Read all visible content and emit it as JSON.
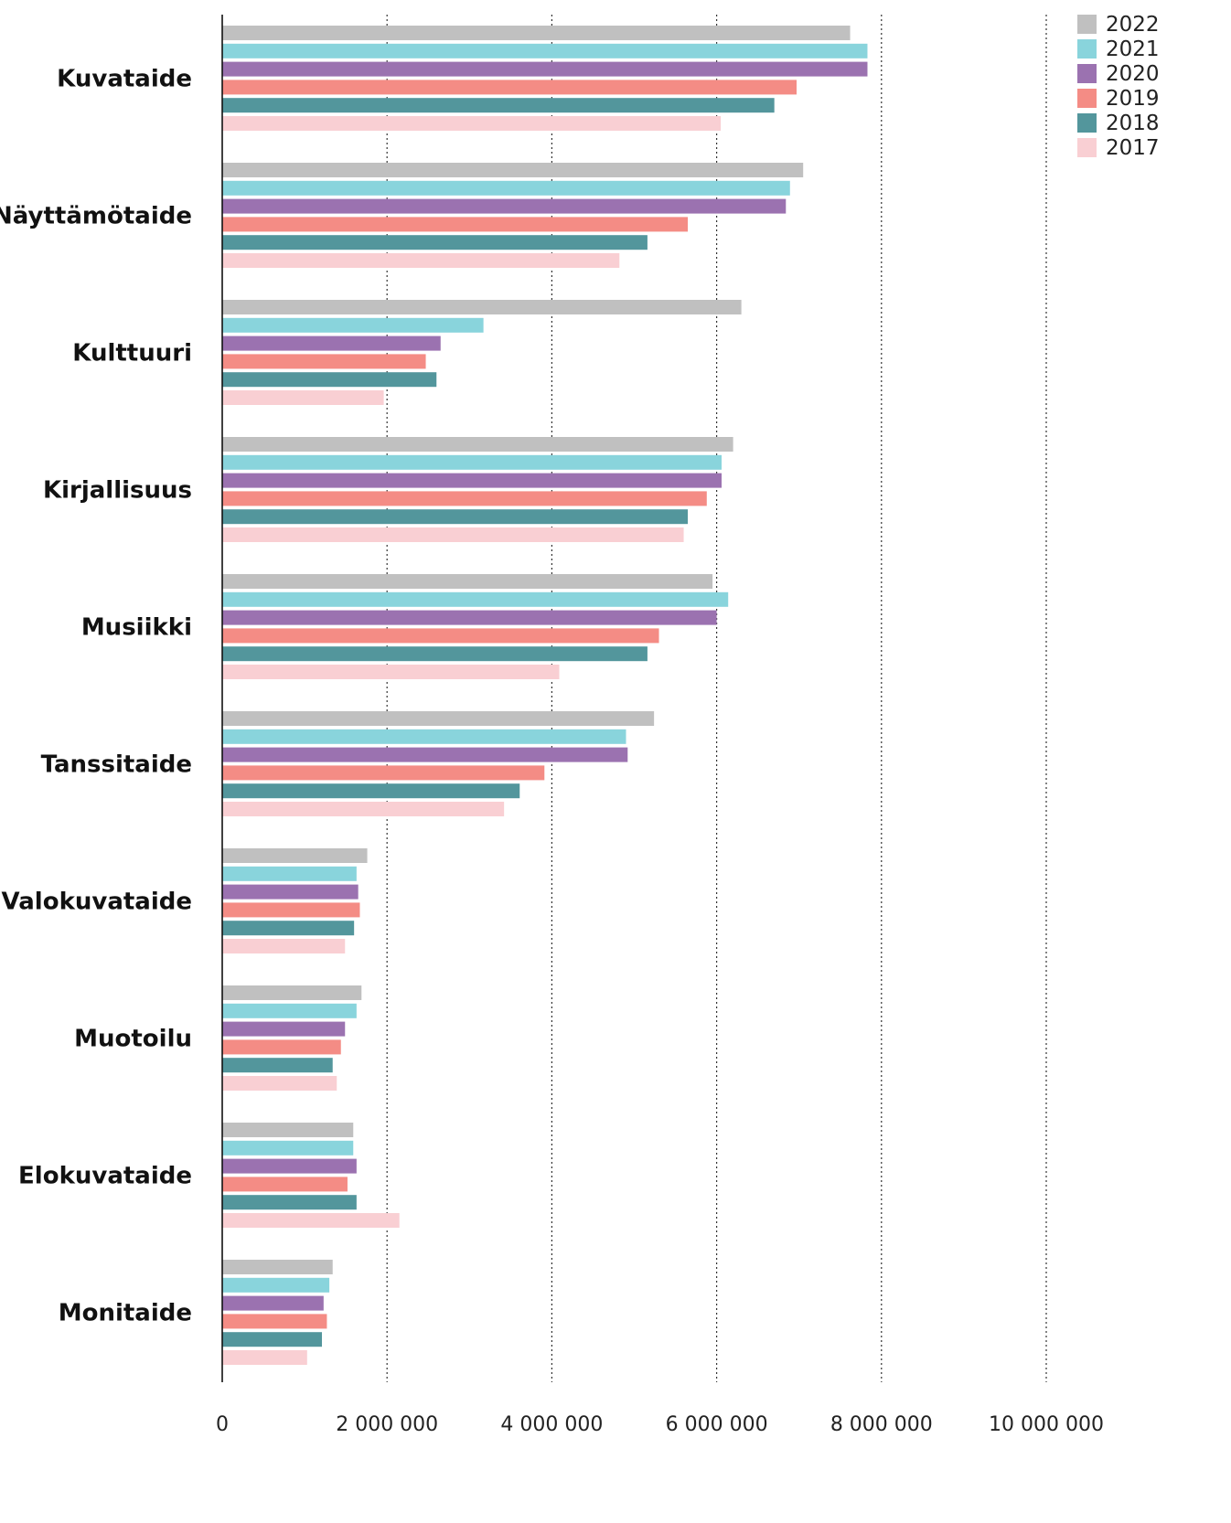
{
  "chart_data": {
    "type": "bar",
    "orientation": "horizontal",
    "title": "",
    "xlabel": "",
    "ylabel": "",
    "xlim": [
      0,
      10000000
    ],
    "grid": "vertical dotted",
    "legend": "top-right",
    "ticks": [
      {
        "value": 0,
        "label": "0"
      },
      {
        "value": 2000000,
        "label": "2 000 000"
      },
      {
        "value": 4000000,
        "label": "4 000 000"
      },
      {
        "value": 6000000,
        "label": "6 000 000"
      },
      {
        "value": 8000000,
        "label": "8 000 000"
      },
      {
        "value": 10000000,
        "label": "10 000 000"
      }
    ],
    "categories": [
      "Kuvataide",
      "Näyttämötaide",
      "Kulttuuri",
      "Kirjallisuus",
      "Musiikki",
      "Tanssitaide",
      "Valokuvataide",
      "Muotoilu",
      "Elokuvataide",
      "Monitaide"
    ],
    "series": [
      {
        "name": "2022",
        "color": "#c0c0c0",
        "values": [
          7620000,
          7050000,
          6300000,
          6200000,
          5950000,
          5240000,
          1760000,
          1690000,
          1590000,
          1340000
        ]
      },
      {
        "name": "2021",
        "color": "#89d4dc",
        "values": [
          7830000,
          6890000,
          3170000,
          6060000,
          6140000,
          4900000,
          1630000,
          1630000,
          1590000,
          1300000
        ]
      },
      {
        "name": "2020",
        "color": "#9b72b0",
        "values": [
          7830000,
          6840000,
          2650000,
          6060000,
          6000000,
          4920000,
          1650000,
          1490000,
          1630000,
          1230000
        ]
      },
      {
        "name": "2019",
        "color": "#f48c85",
        "values": [
          6970000,
          5650000,
          2470000,
          5880000,
          5300000,
          3910000,
          1670000,
          1440000,
          1520000,
          1270000
        ]
      },
      {
        "name": "2018",
        "color": "#53969c",
        "values": [
          6700000,
          5160000,
          2600000,
          5650000,
          5160000,
          3610000,
          1600000,
          1340000,
          1630000,
          1210000
        ]
      },
      {
        "name": "2017",
        "color": "#f9cfd3",
        "values": [
          6050000,
          4820000,
          1960000,
          5600000,
          4090000,
          3420000,
          1490000,
          1390000,
          2150000,
          1030000
        ]
      }
    ]
  }
}
